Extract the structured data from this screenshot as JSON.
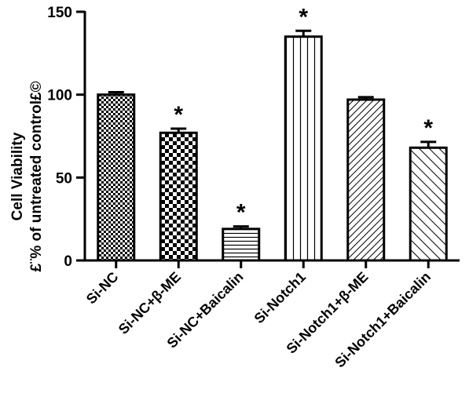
{
  "chart_data": {
    "type": "bar",
    "title": "",
    "xlabel": "",
    "ylabel_line1": "Cell Viability",
    "ylabel_line2": "£¨% of untreated control£©",
    "ylim": [
      0,
      150
    ],
    "yticks": [
      0,
      50,
      100,
      150
    ],
    "grid": false,
    "legend": "none",
    "categories": [
      "Si-NC",
      "Si-NC+β-ME",
      "Si-NC+Baicalin",
      "Si-Notch1",
      "Si-Notch1+β-ME",
      "Si-Notch1+Baicalin"
    ],
    "values": [
      100,
      77,
      19,
      135,
      97,
      68
    ],
    "errors": [
      1.5,
      2.5,
      1.5,
      3.5,
      1.5,
      3.5
    ],
    "significance": [
      "",
      "*",
      "*",
      "*",
      "",
      "*"
    ],
    "patterns": [
      "checker-fine",
      "checker-coarse",
      "horizontal-lines",
      "vertical-lines",
      "diagonal-dense",
      "diagonal-sparse"
    ]
  }
}
